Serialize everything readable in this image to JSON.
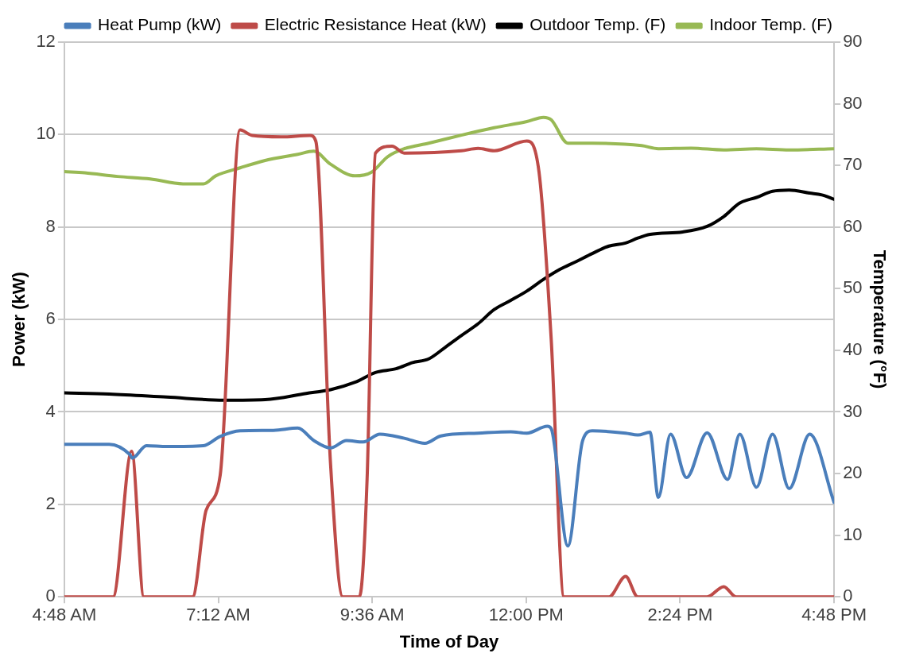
{
  "chart_data": {
    "type": "line",
    "xlabel": "Time of Day",
    "ylabel": "Power (kW)",
    "y2label": "Temperature (°F)",
    "xlim": [
      4.8,
      16.8
    ],
    "xticks": [
      {
        "value": 4.8,
        "label": "4:48 AM"
      },
      {
        "value": 7.2,
        "label": "7:12 AM"
      },
      {
        "value": 9.6,
        "label": "9:36 AM"
      },
      {
        "value": 12,
        "label": "12:00 PM"
      },
      {
        "value": 14.4,
        "label": "2:24 PM"
      },
      {
        "value": 16.8,
        "label": "4:48 PM"
      }
    ],
    "ylim": [
      0,
      12
    ],
    "yticks": [
      0,
      2,
      4,
      6,
      8,
      10,
      12
    ],
    "y2lim": [
      0,
      90
    ],
    "y2ticks": [
      0,
      10,
      20,
      30,
      40,
      50,
      60,
      70,
      80,
      90
    ],
    "grid": "y",
    "legend": "top",
    "marker": "none",
    "line_style": "solid",
    "series": [
      {
        "name": "Heat Pump (kW)",
        "color": "#4a7ebb",
        "x": [
          4.8,
          5.5,
          5.82,
          5.86,
          6.08,
          6.4,
          6.97,
          7.23,
          7.54,
          8.06,
          8.44,
          8.69,
          8.95,
          9.2,
          9.46,
          9.72,
          10.1,
          10.42,
          10.67,
          11.25,
          11.76,
          12.01,
          12.33,
          12.39,
          12.65,
          12.88,
          13.03,
          13.55,
          13.74,
          13.93,
          14.06,
          14.25,
          14.5,
          14.82,
          15.14,
          15.33,
          15.59,
          15.84,
          16.1,
          16.42,
          16.8
        ],
        "values": [
          3.3,
          3.3,
          3.08,
          3.0,
          3.27,
          3.25,
          3.27,
          3.47,
          3.59,
          3.6,
          3.65,
          3.38,
          3.22,
          3.38,
          3.35,
          3.52,
          3.43,
          3.32,
          3.48,
          3.54,
          3.57,
          3.54,
          3.69,
          3.64,
          1.1,
          3.38,
          3.59,
          3.54,
          3.5,
          3.56,
          2.15,
          3.52,
          2.58,
          3.55,
          2.54,
          3.52,
          2.37,
          3.52,
          2.34,
          3.52,
          2.04
        ]
      },
      {
        "name": "Electric Resistance Heat (kW)",
        "color": "#be4b48",
        "x": [
          4.8,
          5.05,
          5.56,
          5.85,
          6.04,
          6.34,
          6.8,
          7.01,
          7.23,
          7.54,
          7.73,
          8.18,
          8.63,
          8.72,
          8.95,
          9.14,
          9.4,
          9.52,
          9.65,
          9.91,
          10.1,
          10.99,
          11.25,
          11.5,
          12.01,
          12.2,
          12.39,
          12.59,
          13.29,
          13.55,
          13.74,
          14.82,
          15.08,
          15.27,
          16.8
        ],
        "values": [
          0,
          0,
          0,
          3.15,
          0,
          0,
          0,
          1.87,
          2.63,
          10.1,
          9.98,
          9.95,
          9.98,
          9.86,
          2.88,
          0,
          0,
          2.54,
          9.6,
          9.75,
          9.6,
          9.65,
          9.7,
          9.65,
          9.86,
          9.19,
          5.57,
          0,
          0,
          0.44,
          0,
          0,
          0.22,
          0,
          0
        ]
      },
      {
        "name": "Outdoor Temp. (F)",
        "color": "#000000",
        "axis": "y2",
        "x": [
          4.8,
          5.5,
          6.4,
          7.29,
          7.93,
          8.57,
          8.95,
          9.33,
          9.65,
          9.97,
          10.23,
          10.48,
          10.74,
          10.99,
          11.25,
          11.5,
          11.76,
          12.01,
          12.27,
          12.52,
          12.78,
          13.03,
          13.29,
          13.55,
          13.74,
          13.93,
          14.44,
          14.82,
          15.08,
          15.33,
          15.59,
          15.84,
          16.1,
          16.42,
          16.61,
          16.8
        ],
        "values": [
          33.1,
          32.9,
          32.4,
          31.9,
          32.0,
          33.0,
          33.6,
          34.8,
          36.4,
          37.0,
          38.0,
          38.6,
          40.5,
          42.4,
          44.3,
          46.6,
          48.1,
          49.6,
          51.5,
          53.1,
          54.4,
          55.7,
          56.9,
          57.4,
          58.2,
          58.8,
          59.2,
          60.1,
          61.7,
          63.9,
          64.8,
          65.8,
          66.0,
          65.5,
          65.2,
          64.5
        ]
      },
      {
        "name": "Indoor Temp. (F)",
        "color": "#98b954",
        "axis": "y2",
        "x": [
          4.8,
          5.12,
          5.63,
          6.14,
          6.65,
          6.97,
          7.16,
          7.54,
          7.93,
          8.44,
          8.69,
          8.95,
          9.33,
          9.59,
          9.84,
          10.1,
          10.48,
          10.99,
          11.5,
          12.01,
          12.27,
          12.39,
          12.65,
          13.03,
          13.8,
          14.06,
          14.57,
          15.08,
          15.59,
          16.1,
          16.8
        ],
        "values": [
          69.0,
          68.8,
          68.2,
          67.8,
          67.0,
          67.0,
          68.3,
          69.6,
          70.8,
          71.8,
          72.3,
          70.2,
          68.3,
          68.9,
          71.4,
          72.7,
          73.6,
          74.9,
          76.1,
          77.1,
          77.8,
          77.4,
          73.6,
          73.6,
          73.2,
          72.7,
          72.8,
          72.5,
          72.7,
          72.5,
          72.7
        ]
      }
    ]
  }
}
